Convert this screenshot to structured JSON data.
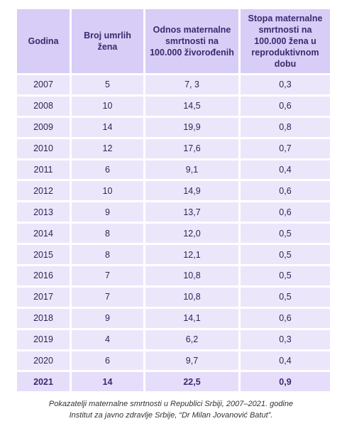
{
  "table": {
    "headers": [
      "Godina",
      "Broj umrlih žena",
      "Odnos maternalne smrtnosti na 100.000 živorođenih",
      "Stopa maternalne smrtnosti na 100.000 žena u reproduktivnom dobu"
    ],
    "rows": [
      [
        "2007",
        "5",
        "7, 3",
        "0,3"
      ],
      [
        "2008",
        "10",
        "14,5",
        "0,6"
      ],
      [
        "2009",
        "14",
        "19,9",
        "0,8"
      ],
      [
        "2010",
        "12",
        "17,6",
        "0,7"
      ],
      [
        "2011",
        "6",
        "9,1",
        "0,4"
      ],
      [
        "2012",
        "10",
        "14,9",
        "0,6"
      ],
      [
        "2013",
        "9",
        "13,7",
        "0,6"
      ],
      [
        "2014",
        "8",
        "12,0",
        "0,5"
      ],
      [
        "2015",
        "8",
        "12,1",
        "0,5"
      ],
      [
        "2016",
        "7",
        "10,8",
        "0,5"
      ],
      [
        "2017",
        "7",
        "10,8",
        "0,5"
      ],
      [
        "2018",
        "9",
        "14,1",
        "0,6"
      ],
      [
        "2019",
        "4",
        "6,2",
        "0,3"
      ],
      [
        "2020",
        "6",
        "9,7",
        "0,4"
      ],
      [
        "2021",
        "14",
        "22,5",
        "0,9"
      ]
    ]
  },
  "caption": [
    "Pokazatelji maternalne smrtnosti u Republici Srbiji, 2007–2021. godine",
    "Institut za javno zdravlje Srbije, “Dr Milan Jovanović Batut”."
  ]
}
